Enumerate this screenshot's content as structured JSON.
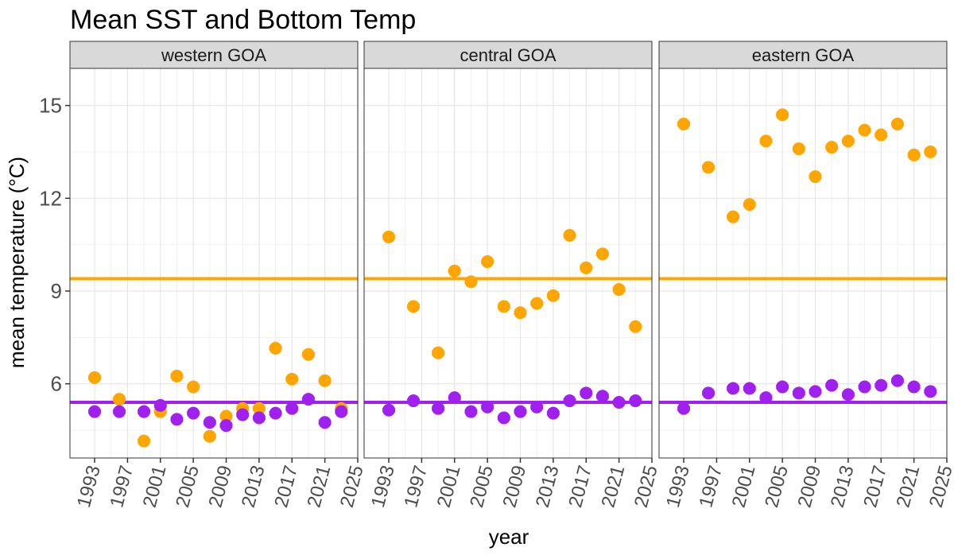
{
  "chart_data": {
    "type": "scatter",
    "title": "Mean SST and Bottom Temp",
    "xlabel": "year",
    "ylabel": "mean temperature (°C)",
    "xlim": [
      1990,
      2025
    ],
    "ylim": [
      3.6,
      16.2
    ],
    "yticks": [
      6,
      9,
      12,
      15
    ],
    "xticks": [
      1993,
      1997,
      2001,
      2005,
      2009,
      2013,
      2017,
      2021,
      2025
    ],
    "grid": true,
    "legend": "none",
    "colors": {
      "sst": "#FFA500",
      "bottom": "#A020F0"
    },
    "reference_lines": {
      "sst": 9.4,
      "bottom": 5.4
    },
    "years": [
      1993,
      1996,
      1999,
      2001,
      2003,
      2005,
      2007,
      2009,
      2011,
      2013,
      2015,
      2017,
      2019,
      2021,
      2023
    ],
    "panels": [
      {
        "label": "western GOA",
        "sst": [
          6.2,
          5.5,
          4.15,
          5.1,
          6.25,
          5.9,
          4.3,
          4.95,
          5.2,
          5.2,
          7.15,
          6.15,
          6.95,
          6.1,
          5.2
        ],
        "bottom": [
          5.1,
          5.1,
          5.1,
          5.3,
          4.85,
          5.05,
          4.75,
          4.65,
          5.0,
          4.9,
          5.05,
          5.2,
          5.5,
          4.75,
          5.1
        ]
      },
      {
        "label": "central GOA",
        "sst": [
          10.75,
          8.5,
          7.0,
          9.65,
          9.3,
          9.95,
          8.5,
          8.3,
          8.6,
          8.85,
          10.8,
          9.75,
          10.2,
          9.05,
          7.85
        ],
        "bottom": [
          5.15,
          5.45,
          5.2,
          5.55,
          5.1,
          5.25,
          4.9,
          5.1,
          5.25,
          5.05,
          5.45,
          5.7,
          5.6,
          5.4,
          5.45
        ]
      },
      {
        "label": "eastern GOA",
        "sst": [
          14.4,
          13.0,
          11.4,
          11.8,
          13.85,
          14.7,
          13.6,
          12.7,
          13.65,
          13.85,
          14.2,
          14.05,
          14.4,
          13.4,
          13.5
        ],
        "bottom": [
          5.2,
          5.7,
          5.85,
          5.85,
          5.55,
          5.9,
          5.7,
          5.75,
          5.95,
          5.65,
          5.9,
          5.95,
          6.1,
          5.9,
          5.75
        ]
      }
    ]
  }
}
